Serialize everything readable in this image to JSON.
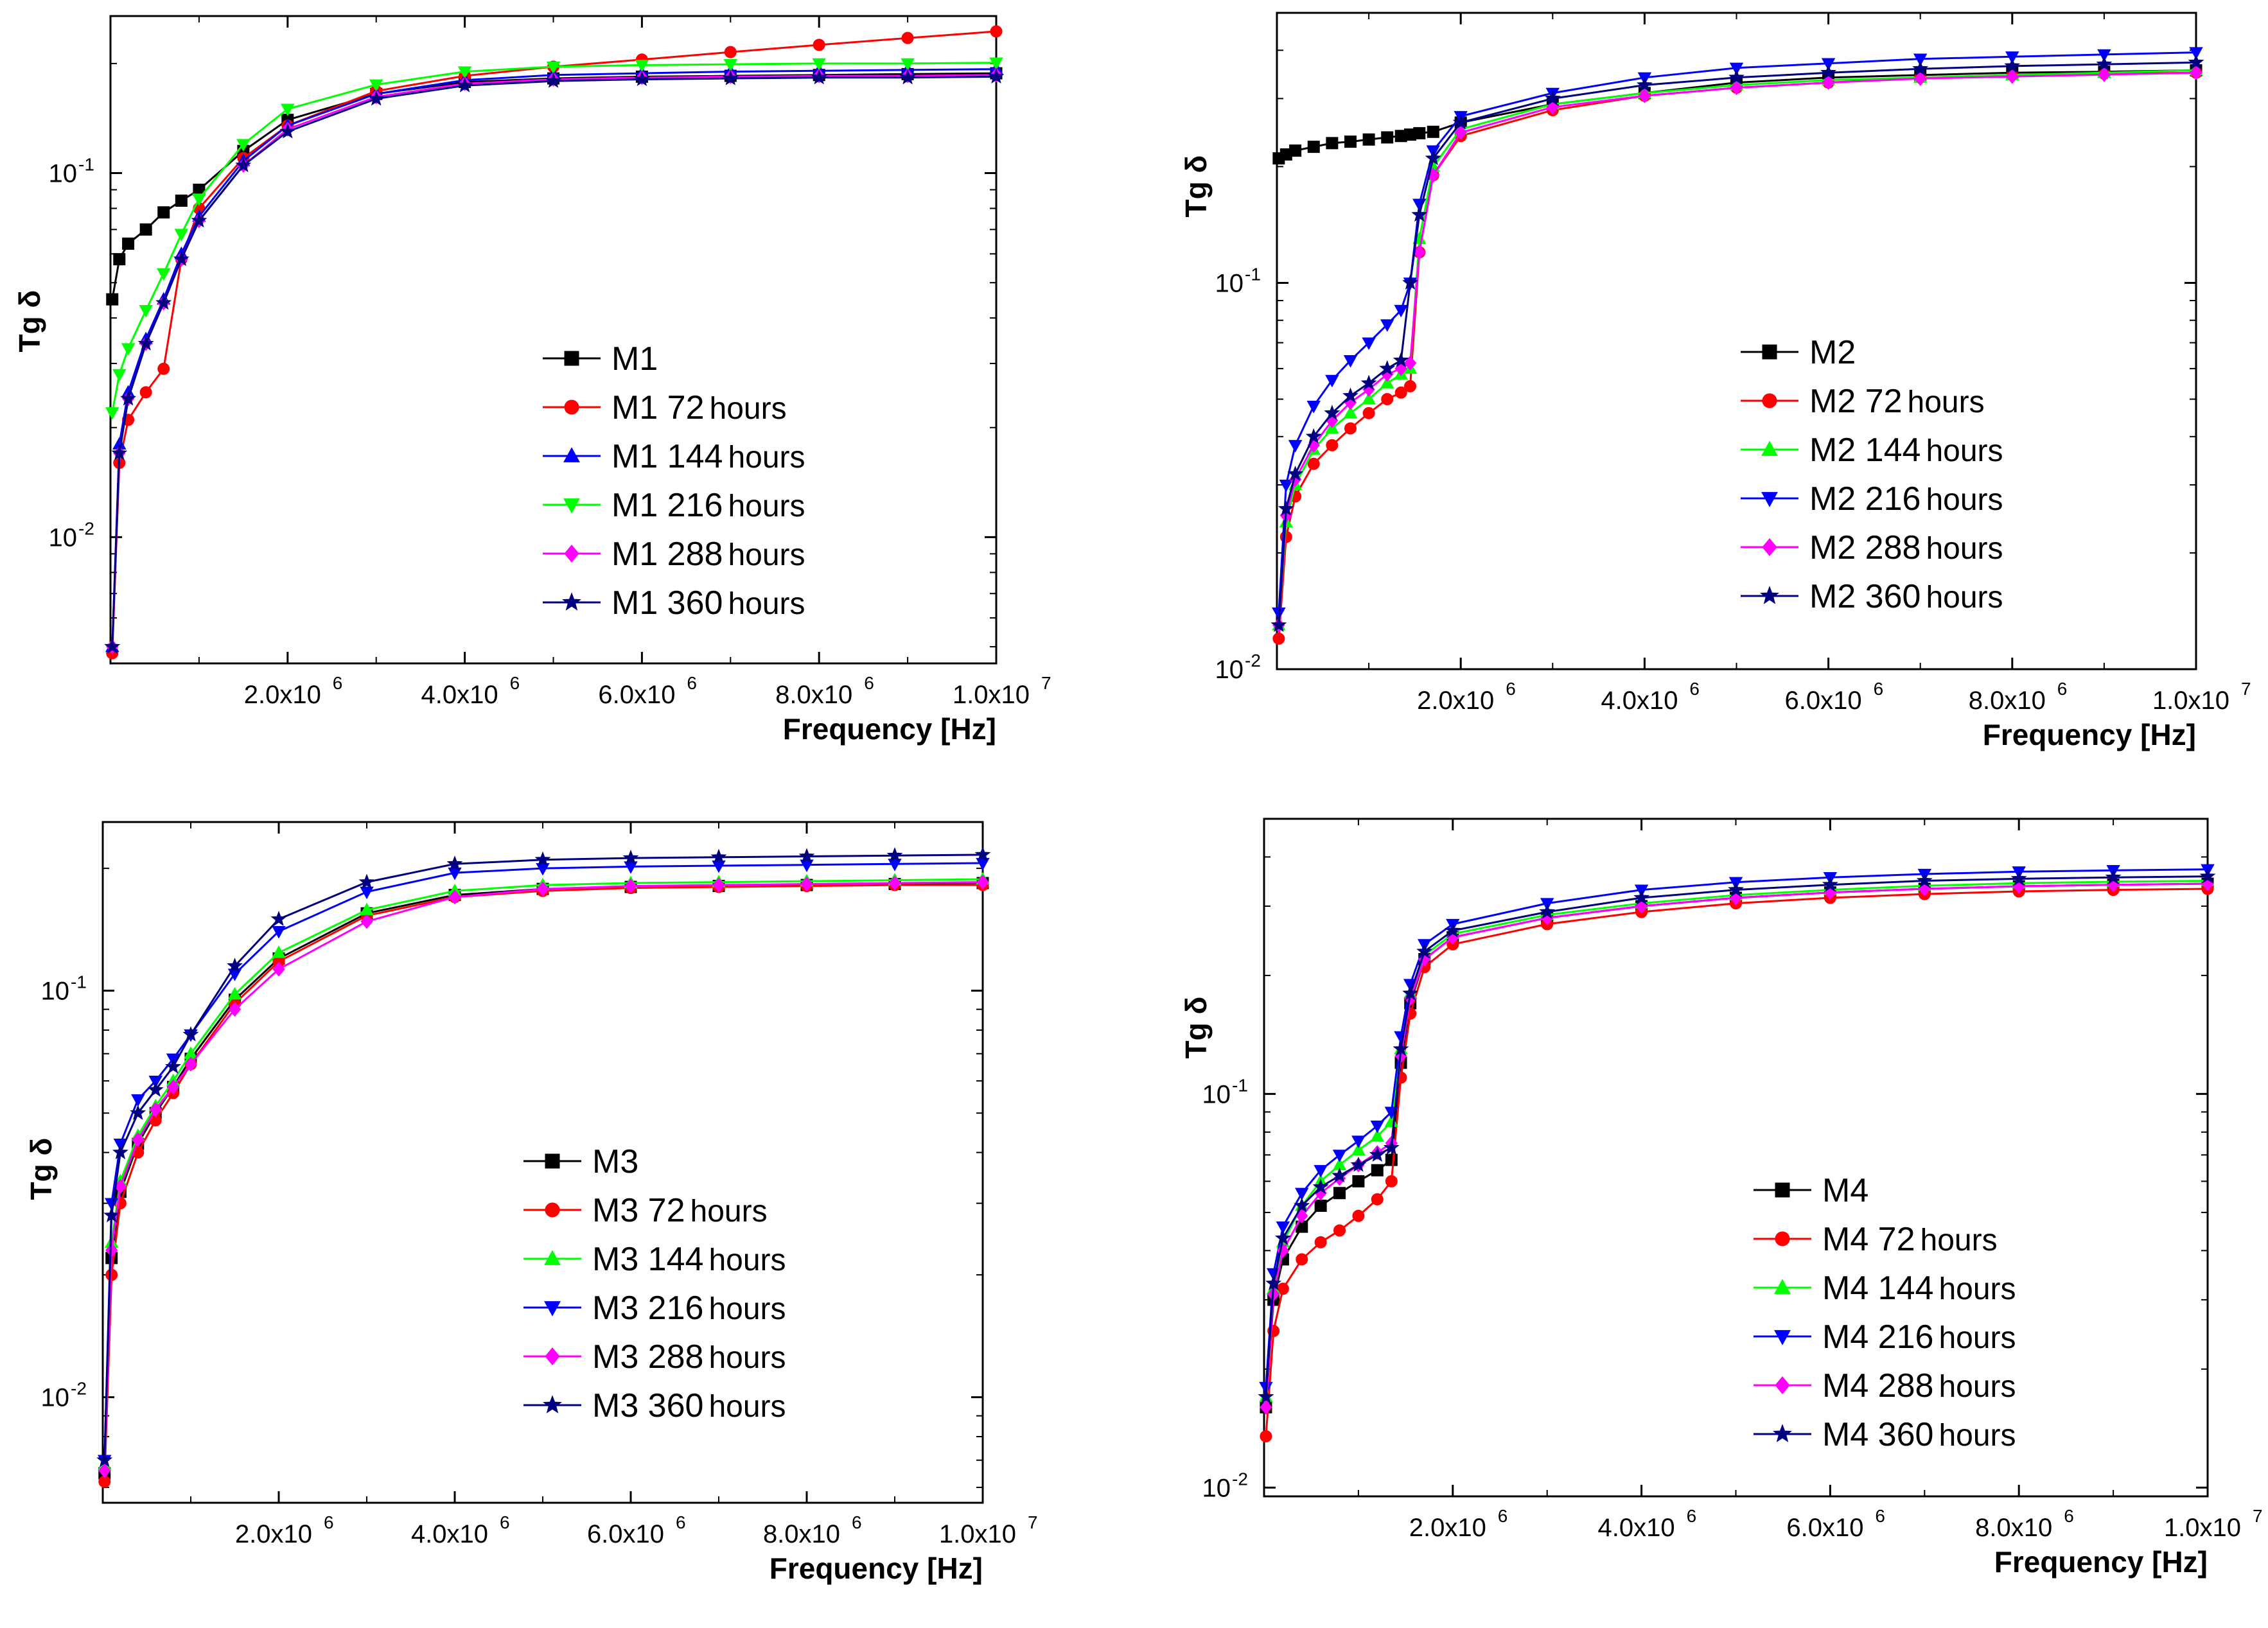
{
  "chart_data": [
    {
      "type": "line",
      "panel": "top-left",
      "xlabel": "Frequency [Hz]",
      "ylabel": "Tg δ",
      "xscale": "linear",
      "yscale": "log",
      "xlim": [
        0,
        10000000
      ],
      "ylim": [
        0.0045,
        0.27
      ],
      "x_ticks": [
        {
          "value": 2000000,
          "label": "2.0x10",
          "exp": "6"
        },
        {
          "value": 4000000,
          "label": "4.0x10",
          "exp": "6"
        },
        {
          "value": 6000000,
          "label": "6.0x10",
          "exp": "6"
        },
        {
          "value": 8000000,
          "label": "8.0x10",
          "exp": "6"
        },
        {
          "value": 10000000,
          "label": "1.0x10",
          "exp": "7"
        }
      ],
      "y_ticks": [
        {
          "value": 0.01,
          "label": "10",
          "exp": "-2"
        },
        {
          "value": 0.1,
          "label": "10",
          "exp": "-1"
        }
      ],
      "legend_position": "center-right",
      "x": [
        20000,
        100000,
        200000,
        400000,
        600000,
        800000,
        1000000,
        1500000,
        2000000,
        3000000,
        4000000,
        5000000,
        6000000,
        7000000,
        8000000,
        9000000,
        10000000
      ],
      "series": [
        {
          "name": "M1",
          "suffix": "",
          "color": "#000000",
          "marker": "square",
          "values": [
            0.045,
            0.058,
            0.064,
            0.07,
            0.078,
            0.084,
            0.09,
            0.115,
            0.14,
            0.165,
            0.178,
            0.182,
            0.184,
            0.185,
            0.186,
            0.187,
            0.188
          ]
        },
        {
          "name": "M1 72",
          "suffix": "hours",
          "color": "#ff0000",
          "marker": "circle",
          "values": [
            0.0048,
            0.016,
            0.021,
            0.025,
            0.029,
            0.058,
            0.08,
            0.11,
            0.135,
            0.168,
            0.185,
            0.196,
            0.205,
            0.215,
            0.225,
            0.235,
            0.245
          ]
        },
        {
          "name": "M1 144",
          "suffix": "hours",
          "color": "#0000ff",
          "marker": "triangle-up",
          "values": [
            0.005,
            0.018,
            0.025,
            0.035,
            0.045,
            0.06,
            0.076,
            0.108,
            0.135,
            0.165,
            0.18,
            0.186,
            0.188,
            0.19,
            0.191,
            0.192,
            0.193
          ]
        },
        {
          "name": "M1 216",
          "suffix": "hours",
          "color": "#00ff00",
          "marker": "triangle-down",
          "values": [
            0.022,
            0.028,
            0.033,
            0.042,
            0.053,
            0.068,
            0.085,
            0.12,
            0.15,
            0.175,
            0.19,
            0.196,
            0.198,
            0.199,
            0.2,
            0.2,
            0.201
          ]
        },
        {
          "name": "M1 288",
          "suffix": "hours",
          "color": "#ff00ff",
          "marker": "diamond",
          "values": [
            0.005,
            0.017,
            0.024,
            0.034,
            0.044,
            0.058,
            0.074,
            0.105,
            0.132,
            0.162,
            0.176,
            0.181,
            0.183,
            0.184,
            0.185,
            0.185,
            0.186
          ]
        },
        {
          "name": "M1 360",
          "suffix": "hours",
          "color": "#000080",
          "marker": "star",
          "values": [
            0.005,
            0.017,
            0.024,
            0.034,
            0.044,
            0.058,
            0.074,
            0.105,
            0.13,
            0.16,
            0.174,
            0.179,
            0.181,
            0.182,
            0.183,
            0.183,
            0.184
          ]
        }
      ]
    },
    {
      "type": "line",
      "panel": "top-right",
      "xlabel": "Frequency [Hz]",
      "ylabel": "Tg δ",
      "xscale": "linear",
      "yscale": "log",
      "xlim": [
        0,
        10000000
      ],
      "ylim": [
        0.01,
        0.5
      ],
      "x_ticks": [
        {
          "value": 2000000,
          "label": "2.0x10",
          "exp": "6"
        },
        {
          "value": 4000000,
          "label": "4.0x10",
          "exp": "6"
        },
        {
          "value": 6000000,
          "label": "6.0x10",
          "exp": "6"
        },
        {
          "value": 8000000,
          "label": "8.0x10",
          "exp": "6"
        },
        {
          "value": 10000000,
          "label": "1.0x10",
          "exp": "7"
        }
      ],
      "y_ticks": [
        {
          "value": 0.01,
          "label": "10",
          "exp": "-2"
        },
        {
          "value": 0.1,
          "label": "10",
          "exp": "-1"
        }
      ],
      "legend_position": "center-right",
      "x": [
        20000,
        100000,
        200000,
        400000,
        600000,
        800000,
        1000000,
        1200000,
        1350000,
        1450000,
        1550000,
        1700000,
        2000000,
        3000000,
        4000000,
        5000000,
        6000000,
        7000000,
        8000000,
        9000000,
        10000000
      ],
      "series": [
        {
          "name": "M2",
          "suffix": "",
          "color": "#000000",
          "marker": "square",
          "values": [
            0.21,
            0.215,
            0.22,
            0.225,
            0.23,
            0.232,
            0.235,
            0.238,
            0.24,
            0.242,
            0.244,
            0.246,
            0.26,
            0.29,
            0.31,
            0.33,
            0.34,
            0.345,
            0.35,
            0.352,
            0.355
          ]
        },
        {
          "name": "M2 72",
          "suffix": "hours",
          "color": "#ff0000",
          "marker": "circle",
          "values": [
            0.012,
            0.022,
            0.028,
            0.034,
            0.038,
            0.042,
            0.046,
            0.05,
            0.052,
            0.054,
            0.12,
            0.19,
            0.24,
            0.28,
            0.305,
            0.32,
            0.33,
            0.34,
            0.345,
            0.348,
            0.35
          ]
        },
        {
          "name": "M2 144",
          "suffix": "hours",
          "color": "#00ff00",
          "marker": "triangle-up",
          "values": [
            0.013,
            0.024,
            0.03,
            0.037,
            0.042,
            0.046,
            0.05,
            0.055,
            0.058,
            0.06,
            0.13,
            0.2,
            0.25,
            0.29,
            0.31,
            0.325,
            0.335,
            0.34,
            0.345,
            0.35,
            0.355
          ]
        },
        {
          "name": "M2 216",
          "suffix": "hours",
          "color": "#0000ff",
          "marker": "triangle-down",
          "values": [
            0.014,
            0.03,
            0.038,
            0.048,
            0.056,
            0.063,
            0.07,
            0.078,
            0.085,
            0.1,
            0.16,
            0.22,
            0.27,
            0.31,
            0.34,
            0.36,
            0.37,
            0.38,
            0.385,
            0.39,
            0.395
          ]
        },
        {
          "name": "M2 288",
          "suffix": "hours",
          "color": "#ff00ff",
          "marker": "diamond",
          "values": [
            0.013,
            0.025,
            0.031,
            0.038,
            0.044,
            0.049,
            0.053,
            0.058,
            0.06,
            0.062,
            0.12,
            0.19,
            0.245,
            0.285,
            0.305,
            0.32,
            0.33,
            0.338,
            0.342,
            0.346,
            0.35
          ]
        },
        {
          "name": "M2 360",
          "suffix": "hours",
          "color": "#000080",
          "marker": "star",
          "values": [
            0.013,
            0.026,
            0.032,
            0.04,
            0.046,
            0.051,
            0.055,
            0.06,
            0.063,
            0.1,
            0.15,
            0.21,
            0.26,
            0.3,
            0.325,
            0.34,
            0.35,
            0.358,
            0.364,
            0.368,
            0.372
          ]
        }
      ]
    },
    {
      "type": "line",
      "panel": "bottom-left",
      "xlabel": "Frequency [Hz]",
      "ylabel": "Tg δ",
      "xscale": "linear",
      "yscale": "log",
      "xlim": [
        0,
        10000000
      ],
      "ylim": [
        0.0055,
        0.26
      ],
      "x_ticks": [
        {
          "value": 2000000,
          "label": "2.0x10",
          "exp": "6"
        },
        {
          "value": 4000000,
          "label": "4.0x10",
          "exp": "6"
        },
        {
          "value": 6000000,
          "label": "6.0x10",
          "exp": "6"
        },
        {
          "value": 8000000,
          "label": "8.0x10",
          "exp": "6"
        },
        {
          "value": 10000000,
          "label": "1.0x10",
          "exp": "7"
        }
      ],
      "y_ticks": [
        {
          "value": 0.01,
          "label": "10",
          "exp": "-2"
        },
        {
          "value": 0.1,
          "label": "10",
          "exp": "-1"
        }
      ],
      "legend_position": "center-right",
      "x": [
        20000,
        100000,
        200000,
        400000,
        600000,
        800000,
        1000000,
        1500000,
        2000000,
        3000000,
        4000000,
        5000000,
        6000000,
        7000000,
        8000000,
        9000000,
        10000000
      ],
      "series": [
        {
          "name": "M3",
          "suffix": "",
          "color": "#000000",
          "marker": "square",
          "values": [
            0.0065,
            0.022,
            0.032,
            0.042,
            0.05,
            0.058,
            0.068,
            0.095,
            0.12,
            0.155,
            0.172,
            0.178,
            0.18,
            0.181,
            0.182,
            0.183,
            0.184
          ]
        },
        {
          "name": "M3 72",
          "suffix": "hours",
          "color": "#ff0000",
          "marker": "circle",
          "values": [
            0.0062,
            0.02,
            0.03,
            0.04,
            0.048,
            0.056,
            0.066,
            0.093,
            0.118,
            0.153,
            0.17,
            0.176,
            0.179,
            0.18,
            0.181,
            0.182,
            0.182
          ]
        },
        {
          "name": "M3 144",
          "suffix": "hours",
          "color": "#00ff00",
          "marker": "triangle-up",
          "values": [
            0.0068,
            0.024,
            0.034,
            0.044,
            0.052,
            0.06,
            0.07,
            0.098,
            0.124,
            0.158,
            0.176,
            0.182,
            0.184,
            0.185,
            0.186,
            0.187,
            0.188
          ]
        },
        {
          "name": "M3 216",
          "suffix": "hours",
          "color": "#0000ff",
          "marker": "triangle-down",
          "values": [
            0.007,
            0.03,
            0.042,
            0.054,
            0.06,
            0.068,
            0.078,
            0.11,
            0.14,
            0.175,
            0.195,
            0.2,
            0.202,
            0.203,
            0.204,
            0.205,
            0.206
          ]
        },
        {
          "name": "M3 288",
          "suffix": "hours",
          "color": "#ff00ff",
          "marker": "diamond",
          "values": [
            0.0066,
            0.023,
            0.033,
            0.043,
            0.051,
            0.058,
            0.066,
            0.09,
            0.113,
            0.148,
            0.17,
            0.178,
            0.181,
            0.182,
            0.183,
            0.184,
            0.185
          ]
        },
        {
          "name": "M3 360",
          "suffix": "hours",
          "color": "#000080",
          "marker": "star",
          "values": [
            0.007,
            0.028,
            0.04,
            0.05,
            0.057,
            0.065,
            0.078,
            0.115,
            0.15,
            0.185,
            0.205,
            0.21,
            0.212,
            0.213,
            0.214,
            0.215,
            0.216
          ]
        }
      ]
    },
    {
      "type": "line",
      "panel": "bottom-right",
      "xlabel": "Frequency [Hz]",
      "ylabel": "Tg δ",
      "xscale": "linear",
      "yscale": "log",
      "xlim": [
        0,
        10000000
      ],
      "ylim": [
        0.0095,
        0.5
      ],
      "x_ticks": [
        {
          "value": 2000000,
          "label": "2.0x10",
          "exp": "6"
        },
        {
          "value": 4000000,
          "label": "4.0x10",
          "exp": "6"
        },
        {
          "value": 6000000,
          "label": "6.0x10",
          "exp": "6"
        },
        {
          "value": 8000000,
          "label": "8.0x10",
          "exp": "6"
        },
        {
          "value": 10000000,
          "label": "1.0x10",
          "exp": "7"
        }
      ],
      "y_ticks": [
        {
          "value": 0.01,
          "label": "10",
          "exp": "-2"
        },
        {
          "value": 0.1,
          "label": "10",
          "exp": "-1"
        }
      ],
      "legend_position": "bottom-right",
      "x": [
        20000,
        100000,
        200000,
        400000,
        600000,
        800000,
        1000000,
        1200000,
        1350000,
        1450000,
        1550000,
        1700000,
        2000000,
        3000000,
        4000000,
        5000000,
        6000000,
        7000000,
        8000000,
        9000000,
        10000000
      ],
      "series": [
        {
          "name": "M4",
          "suffix": "",
          "color": "#000000",
          "marker": "square",
          "values": [
            0.016,
            0.03,
            0.038,
            0.046,
            0.052,
            0.056,
            0.06,
            0.064,
            0.068,
            0.12,
            0.17,
            0.22,
            0.25,
            0.28,
            0.3,
            0.315,
            0.325,
            0.332,
            0.337,
            0.34,
            0.342
          ]
        },
        {
          "name": "M4 72",
          "suffix": "hours",
          "color": "#ff0000",
          "marker": "circle",
          "values": [
            0.0135,
            0.025,
            0.032,
            0.038,
            0.042,
            0.045,
            0.049,
            0.054,
            0.06,
            0.11,
            0.16,
            0.21,
            0.24,
            0.27,
            0.29,
            0.305,
            0.315,
            0.322,
            0.327,
            0.33,
            0.332
          ]
        },
        {
          "name": "M4 144",
          "suffix": "hours",
          "color": "#00ff00",
          "marker": "triangle-up",
          "values": [
            0.017,
            0.032,
            0.042,
            0.052,
            0.06,
            0.066,
            0.072,
            0.078,
            0.085,
            0.13,
            0.18,
            0.225,
            0.255,
            0.285,
            0.305,
            0.32,
            0.33,
            0.338,
            0.343,
            0.346,
            0.348
          ]
        },
        {
          "name": "M4 216",
          "suffix": "hours",
          "color": "#0000ff",
          "marker": "triangle-down",
          "values": [
            0.018,
            0.035,
            0.046,
            0.056,
            0.064,
            0.07,
            0.076,
            0.083,
            0.09,
            0.14,
            0.19,
            0.24,
            0.27,
            0.305,
            0.33,
            0.345,
            0.355,
            0.362,
            0.367,
            0.37,
            0.372
          ]
        },
        {
          "name": "M4 288",
          "suffix": "hours",
          "color": "#ff00ff",
          "marker": "diamond",
          "values": [
            0.016,
            0.031,
            0.04,
            0.049,
            0.056,
            0.061,
            0.066,
            0.071,
            0.075,
            0.125,
            0.175,
            0.22,
            0.25,
            0.28,
            0.3,
            0.315,
            0.325,
            0.332,
            0.337,
            0.34,
            0.342
          ]
        },
        {
          "name": "M4 360",
          "suffix": "hours",
          "color": "#000080",
          "marker": "star",
          "values": [
            0.017,
            0.033,
            0.043,
            0.052,
            0.058,
            0.062,
            0.066,
            0.07,
            0.073,
            0.13,
            0.18,
            0.23,
            0.26,
            0.29,
            0.315,
            0.33,
            0.34,
            0.348,
            0.352,
            0.355,
            0.357
          ]
        }
      ]
    }
  ]
}
